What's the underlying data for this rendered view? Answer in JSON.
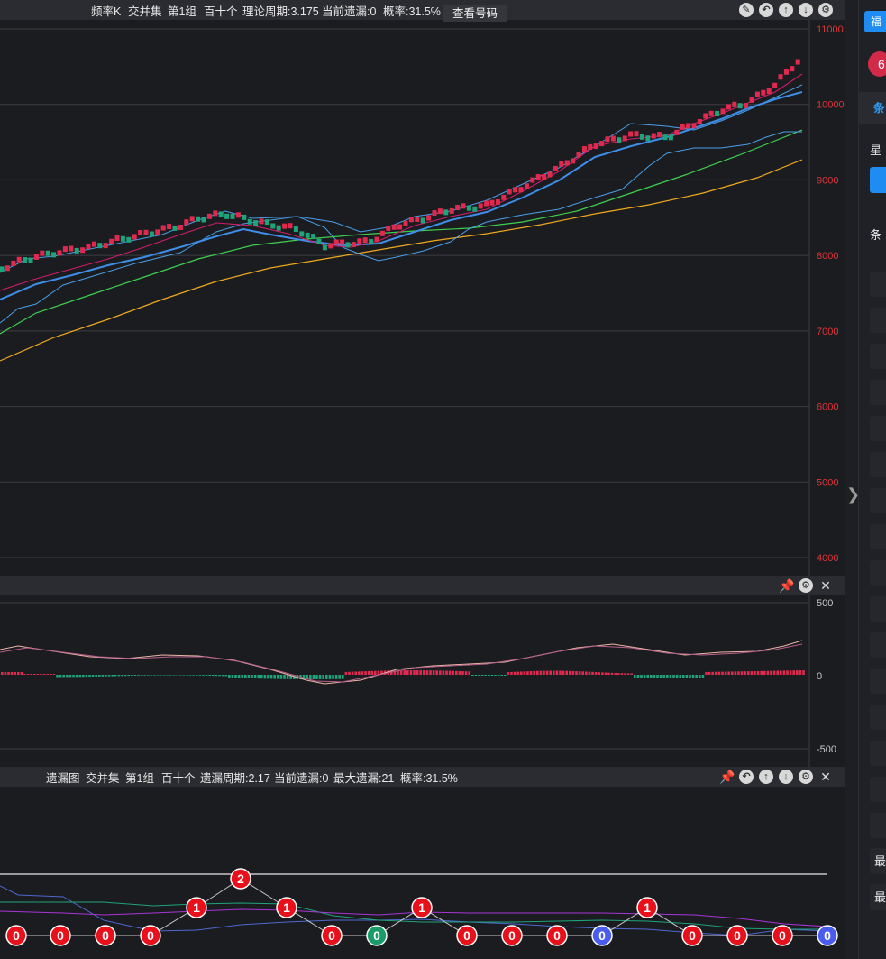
{
  "top_panel": {
    "title_items": [
      "频率K",
      "交并集",
      "第1组",
      "百十个",
      "理论周期:3.175",
      "当前遗漏:0",
      "概率:31.5%"
    ],
    "view_button": "查看号码",
    "y_ticks": [
      "11000",
      "10000",
      "9000",
      "8000",
      "7000",
      "6000",
      "5000",
      "4000"
    ],
    "icons": [
      "edit-icon",
      "undo-icon",
      "up-icon",
      "down-icon",
      "settings-icon"
    ]
  },
  "mid_panel": {
    "y_ticks": [
      "500",
      "0",
      "-500"
    ],
    "icons": [
      "pin-icon",
      "settings-icon",
      "close-icon"
    ]
  },
  "bottom_panel": {
    "title_items": [
      "遗漏图",
      "交并集",
      "第1组",
      "百十个",
      "遗漏周期:2.17",
      "当前遗漏:0",
      "最大遗漏:21",
      "概率:31.5%"
    ],
    "icons": [
      "pin-icon",
      "undo-icon",
      "up-icon",
      "down-icon",
      "settings-icon",
      "close-icon"
    ],
    "nodes": [
      {
        "v": "0",
        "c": "red"
      },
      {
        "v": "0",
        "c": "red"
      },
      {
        "v": "0",
        "c": "red"
      },
      {
        "v": "0",
        "c": "red"
      },
      {
        "v": "1",
        "c": "red"
      },
      {
        "v": "2",
        "c": "red"
      },
      {
        "v": "1",
        "c": "red"
      },
      {
        "v": "0",
        "c": "red"
      },
      {
        "v": "0",
        "c": "green"
      },
      {
        "v": "1",
        "c": "red"
      },
      {
        "v": "0",
        "c": "red"
      },
      {
        "v": "0",
        "c": "red"
      },
      {
        "v": "0",
        "c": "red"
      },
      {
        "v": "0",
        "c": "blue"
      },
      {
        "v": "1",
        "c": "red"
      },
      {
        "v": "0",
        "c": "red"
      },
      {
        "v": "0",
        "c": "red"
      },
      {
        "v": "0",
        "c": "red"
      },
      {
        "v": "0",
        "c": "blue"
      }
    ]
  },
  "side_panel": {
    "texts": [
      "福",
      "6",
      "条",
      "星",
      "条",
      "最",
      "最"
    ]
  },
  "colors": {
    "up": "#e0294f",
    "down": "#1ea37a",
    "ma_red": "#e0294f",
    "ma_blue": "#3d8ee8",
    "ma_green": "#3ecf4f",
    "ma_orange": "#f0a81e",
    "boll": "#4a9ee8",
    "node_red": "#e8101b",
    "node_green": "#1b9a6a",
    "node_blue": "#4a5cf0"
  }
}
